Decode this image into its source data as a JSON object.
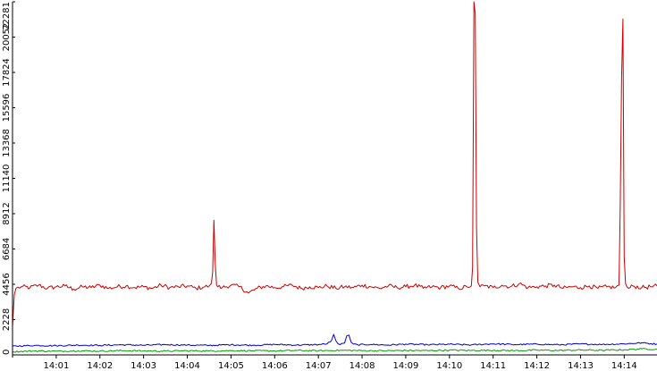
{
  "chart_data": {
    "type": "line",
    "background": "#ffffff",
    "axis_color": "#000000",
    "ylim": [
      0,
      22281
    ],
    "y_ticks": [
      0,
      2228,
      4456,
      6684,
      8912,
      11140,
      13368,
      15596,
      17824,
      20052,
      22281
    ],
    "x_range_minutes": [
      0.0,
      14.75
    ],
    "x_ticks": [
      {
        "minute": 1,
        "label": "14:01"
      },
      {
        "minute": 2,
        "label": "14:02"
      },
      {
        "minute": 3,
        "label": "14:03"
      },
      {
        "minute": 4,
        "label": "14:04"
      },
      {
        "minute": 5,
        "label": "14:05"
      },
      {
        "minute": 6,
        "label": "14:06"
      },
      {
        "minute": 7,
        "label": "14:07"
      },
      {
        "minute": 8,
        "label": "14:08"
      },
      {
        "minute": 9,
        "label": "14:09"
      },
      {
        "minute": 10,
        "label": "14:10"
      },
      {
        "minute": 11,
        "label": "14:11"
      },
      {
        "minute": 12,
        "label": "14:12"
      },
      {
        "minute": 13,
        "label": "14:13"
      },
      {
        "minute": 14,
        "label": "14:14"
      }
    ],
    "series": [
      {
        "color": "#cc0000",
        "x": [
          0.0,
          0.04,
          0.08,
          0.2,
          0.4,
          0.6,
          0.8,
          1.0,
          1.2,
          1.4,
          1.6,
          1.8,
          2.0,
          2.2,
          2.4,
          2.6,
          2.8,
          3.0,
          3.2,
          3.4,
          3.6,
          3.8,
          4.0,
          4.2,
          4.4,
          4.5,
          4.55,
          4.58,
          4.61,
          4.64,
          4.67,
          4.7,
          4.8,
          5.0,
          5.2,
          5.4,
          5.6,
          5.8,
          6.0,
          6.2,
          6.4,
          6.6,
          6.8,
          7.0,
          7.2,
          7.4,
          7.6,
          7.8,
          8.0,
          8.2,
          8.4,
          8.6,
          8.8,
          9.0,
          9.2,
          9.4,
          9.6,
          9.8,
          10.0,
          10.2,
          10.4,
          10.5,
          10.53,
          10.56,
          10.59,
          10.62,
          10.65,
          10.7,
          10.8,
          11.0,
          11.2,
          11.4,
          11.6,
          11.8,
          12.0,
          12.2,
          12.4,
          12.6,
          12.8,
          13.0,
          13.2,
          13.4,
          13.6,
          13.8,
          13.88,
          13.91,
          13.94,
          13.97,
          14.0,
          14.03,
          14.06,
          14.1,
          14.2,
          14.4,
          14.6,
          14.75
        ],
        "values": [
          1800,
          3800,
          4200,
          4300,
          4250,
          4400,
          4200,
          4300,
          4350,
          4150,
          4300,
          4250,
          4400,
          4200,
          4300,
          4350,
          4250,
          4300,
          4200,
          4400,
          4250,
          4300,
          4350,
          4200,
          4300,
          4350,
          4500,
          5200,
          8500,
          5800,
          4400,
          4300,
          4250,
          4400,
          4300,
          3900,
          4200,
          4350,
          4250,
          4300,
          4400,
          4200,
          4300,
          4250,
          4350,
          4200,
          4300,
          4250,
          4400,
          4300,
          4200,
          4350,
          4250,
          4300,
          4400,
          4200,
          4300,
          4250,
          4350,
          4200,
          4300,
          4350,
          5500,
          22281,
          21500,
          8000,
          4600,
          4300,
          4350,
          4250,
          4400,
          4300,
          4500,
          4250,
          4300,
          4350,
          4400,
          4200,
          4300,
          4250,
          4350,
          4200,
          4300,
          4250,
          4400,
          9500,
          17500,
          21200,
          6200,
          4500,
          4300,
          4200,
          4350,
          4250,
          4300,
          4350
        ]
      },
      {
        "color": "#0000cc",
        "x": [
          0.0,
          0.5,
          1.0,
          1.5,
          2.0,
          2.5,
          3.0,
          3.5,
          4.0,
          4.5,
          5.0,
          5.5,
          6.0,
          6.5,
          7.0,
          7.2,
          7.3,
          7.35,
          7.4,
          7.45,
          7.5,
          7.6,
          7.65,
          7.7,
          7.75,
          7.8,
          7.9,
          8.2,
          8.6,
          9.0,
          9.5,
          10.0,
          10.5,
          11.0,
          11.5,
          12.0,
          12.5,
          13.0,
          13.5,
          14.0,
          14.4,
          14.75
        ],
        "values": [
          550,
          600,
          580,
          620,
          600,
          640,
          610,
          650,
          620,
          600,
          640,
          610,
          660,
          620,
          650,
          700,
          900,
          1300,
          900,
          700,
          650,
          750,
          1200,
          1250,
          800,
          680,
          640,
          660,
          620,
          680,
          640,
          670,
          630,
          700,
          650,
          680,
          640,
          690,
          660,
          700,
          760,
          680
        ]
      },
      {
        "color": "#009900",
        "x": [
          0.0,
          0.5,
          1.0,
          1.5,
          2.0,
          2.5,
          3.0,
          3.5,
          4.0,
          4.5,
          5.0,
          5.5,
          6.0,
          6.5,
          7.0,
          7.5,
          8.0,
          8.5,
          9.0,
          9.5,
          10.0,
          10.5,
          11.0,
          11.5,
          12.0,
          12.5,
          13.0,
          13.5,
          14.0,
          14.4,
          14.75
        ],
        "values": [
          200,
          250,
          230,
          260,
          240,
          270,
          250,
          240,
          260,
          250,
          270,
          260,
          250,
          280,
          260,
          290,
          270,
          260,
          280,
          270,
          300,
          280,
          290,
          270,
          300,
          280,
          310,
          290,
          320,
          380,
          360
        ]
      }
    ]
  }
}
